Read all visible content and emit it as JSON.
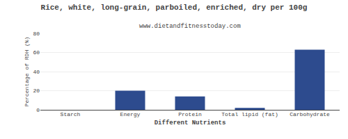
{
  "chart_data": {
    "type": "bar",
    "title": "Rice, white, long-grain, parboiled, enriched, dry per 100g",
    "subtitle": "www.dietandfitnesstoday.com",
    "xlabel": "Different Nutrients",
    "ylabel": "Percentage of RDH (%)",
    "categories": [
      "Starch",
      "Energy",
      "Protein",
      "Total lipid (fat)",
      "Carbohydrate"
    ],
    "values": [
      0,
      20,
      14,
      2,
      63
    ],
    "color": "#2d4b8e",
    "ylim": [
      0,
      80
    ],
    "yticks": [
      0,
      20,
      40,
      60,
      80
    ],
    "grid": true
  }
}
